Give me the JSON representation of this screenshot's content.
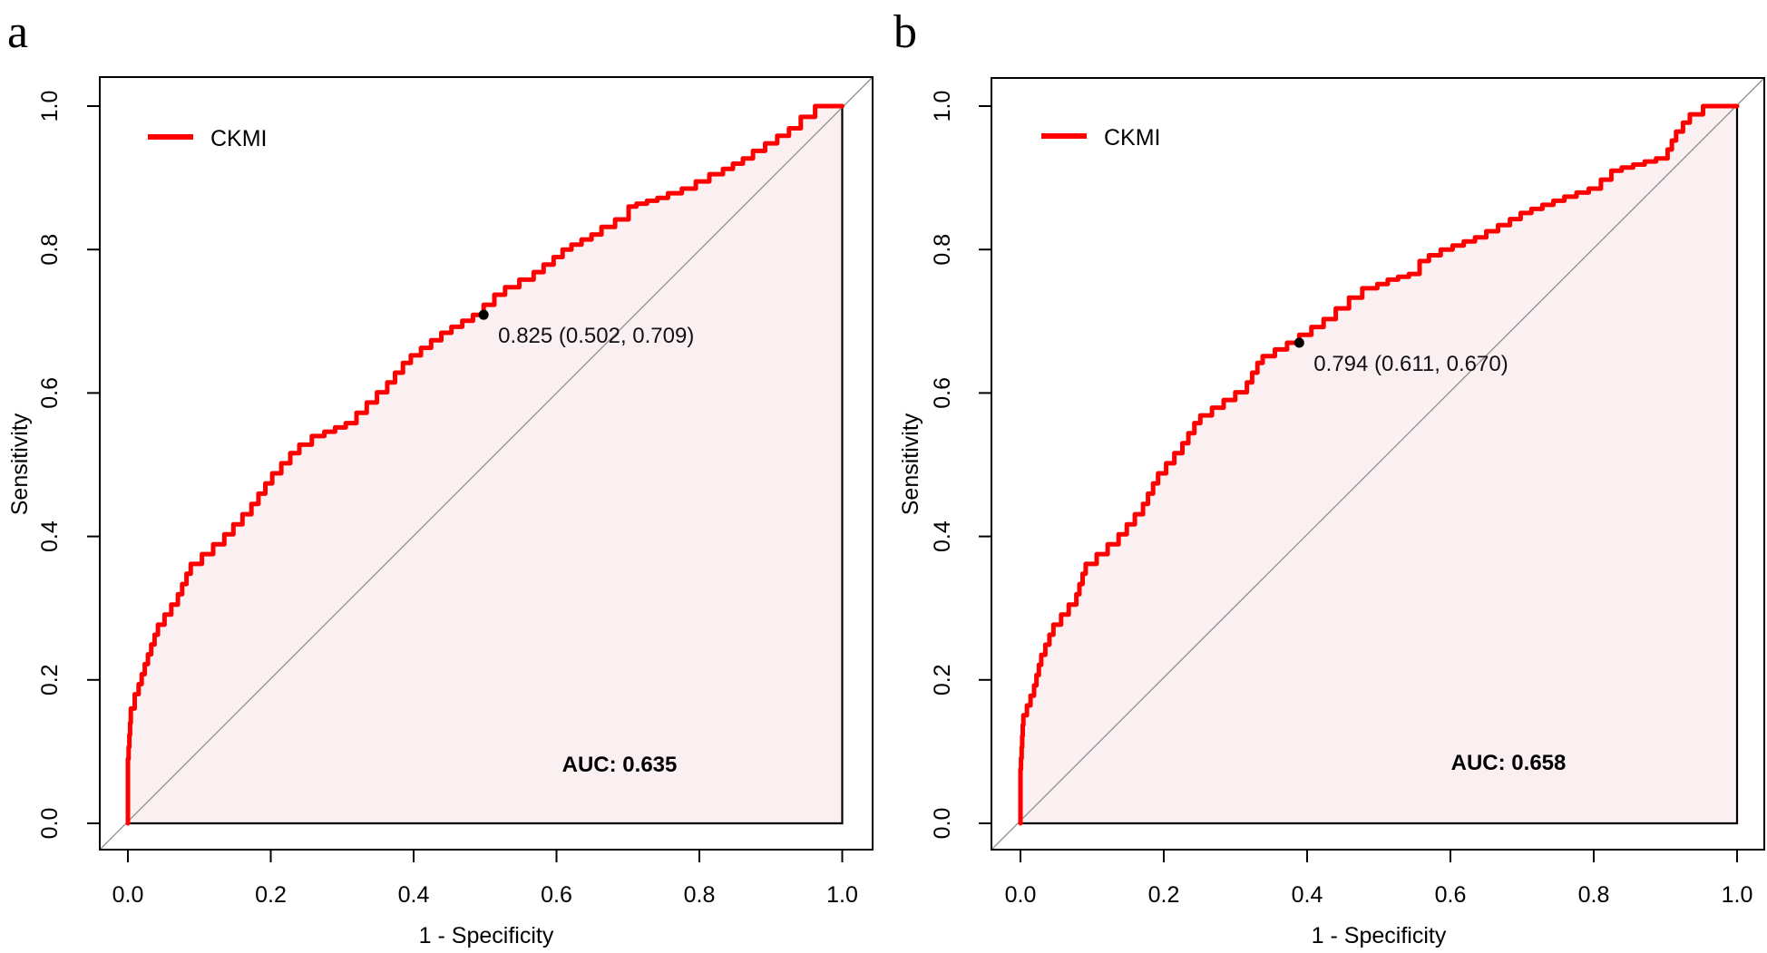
{
  "figure": {
    "background": "#ffffff",
    "panel_letters": [
      "a",
      "b"
    ]
  },
  "chart_data": [
    {
      "type": "line",
      "panel_label": "a",
      "title": "",
      "xlabel": "1 - Specificity",
      "ylabel": "Sensitivity",
      "xlim": [
        0.0,
        1.0
      ],
      "ylim": [
        0.0,
        1.0
      ],
      "x_tick_labels": [
        "0.0",
        "0.2",
        "0.4",
        "0.6",
        "0.8",
        "1.0"
      ],
      "y_tick_labels": [
        "0.0",
        "0.2",
        "0.4",
        "0.6",
        "0.8",
        "1.0"
      ],
      "grid": false,
      "legend_position": "top-left",
      "legend": [
        {
          "label": "CKMI",
          "color": "#ff0000"
        }
      ],
      "diagonal_reference": true,
      "auc": 0.635,
      "auc_label": "AUC: 0.635",
      "auc_color": "#ef3b46",
      "area_fill": "#fbf0f1",
      "best_threshold": {
        "label": "0.825 (0.502, 0.709)",
        "threshold": 0.825,
        "specificity": 0.502,
        "sensitivity": 0.709
      },
      "series": [
        {
          "name": "CKMI",
          "color": "#ff0000",
          "step": true,
          "points": [
            [
              0,
              0
            ],
            [
              0,
              0.073
            ],
            [
              0.004,
              0.14
            ],
            [
              0.015,
              0.18
            ],
            [
              0.028,
              0.222
            ],
            [
              0.042,
              0.263
            ],
            [
              0.07,
              0.305
            ],
            [
              0.088,
              0.348
            ],
            [
              0.135,
              0.389
            ],
            [
              0.173,
              0.431
            ],
            [
              0.202,
              0.474
            ],
            [
              0.24,
              0.516
            ],
            [
              0.275,
              0.54
            ],
            [
              0.32,
              0.558
            ],
            [
              0.363,
              0.601
            ],
            [
              0.396,
              0.642
            ],
            [
              0.453,
              0.684
            ],
            [
              0.498,
              0.709
            ],
            [
              0.528,
              0.737
            ],
            [
              0.568,
              0.758
            ],
            [
              0.596,
              0.779
            ],
            [
              0.621,
              0.8
            ],
            [
              0.663,
              0.821
            ],
            [
              0.701,
              0.842
            ],
            [
              0.712,
              0.86
            ],
            [
              0.756,
              0.872
            ],
            [
              0.795,
              0.885
            ],
            [
              0.833,
              0.905
            ],
            [
              0.875,
              0.927
            ],
            [
              0.909,
              0.948
            ],
            [
              0.942,
              0.969
            ],
            [
              0.962,
              0.985
            ],
            [
              0.985,
              1
            ],
            [
              1,
              1
            ]
          ]
        }
      ]
    },
    {
      "type": "line",
      "panel_label": "b",
      "title": "",
      "xlabel": "1 - Specificity",
      "ylabel": "Sensitivity",
      "xlim": [
        0.0,
        1.0
      ],
      "ylim": [
        0.0,
        1.0
      ],
      "x_tick_labels": [
        "0.0",
        "0.2",
        "0.4",
        "0.6",
        "0.8",
        "1.0"
      ],
      "y_tick_labels": [
        "0.0",
        "0.2",
        "0.4",
        "0.6",
        "0.8",
        "1.0"
      ],
      "grid": false,
      "legend_position": "top-left",
      "legend": [
        {
          "label": "CKMI",
          "color": "#ff0000"
        }
      ],
      "diagonal_reference": true,
      "auc": 0.658,
      "auc_label": "AUC: 0.658",
      "auc_color": "#ef3b46",
      "area_fill": "#fbf0f1",
      "best_threshold": {
        "label": "0.794 (0.611, 0.670)",
        "threshold": 0.794,
        "specificity": 0.611,
        "sensitivity": 0.67
      },
      "series": [
        {
          "name": "CKMI",
          "color": "#ff0000",
          "step": true,
          "points": [
            [
              0,
              0
            ],
            [
              0,
              0.06
            ],
            [
              0.004,
              0.137
            ],
            [
              0.019,
              0.178
            ],
            [
              0.029,
              0.221
            ],
            [
              0.046,
              0.263
            ],
            [
              0.078,
              0.305
            ],
            [
              0.091,
              0.348
            ],
            [
              0.137,
              0.389
            ],
            [
              0.171,
              0.431
            ],
            [
              0.192,
              0.474
            ],
            [
              0.226,
              0.516
            ],
            [
              0.251,
              0.558
            ],
            [
              0.316,
              0.601
            ],
            [
              0.338,
              0.642
            ],
            [
              0.389,
              0.67
            ],
            [
              0.44,
              0.703
            ],
            [
              0.477,
              0.733
            ],
            [
              0.498,
              0.746
            ],
            [
              0.527,
              0.758
            ],
            [
              0.557,
              0.766
            ],
            [
              0.57,
              0.784
            ],
            [
              0.603,
              0.8
            ],
            [
              0.65,
              0.817
            ],
            [
              0.683,
              0.834
            ],
            [
              0.713,
              0.851
            ],
            [
              0.759,
              0.868
            ],
            [
              0.81,
              0.885
            ],
            [
              0.839,
              0.91
            ],
            [
              0.903,
              0.927
            ],
            [
              0.915,
              0.952
            ],
            [
              0.934,
              0.977
            ],
            [
              0.971,
              1
            ],
            [
              1,
              1
            ]
          ]
        }
      ]
    }
  ],
  "colors": {
    "curve": "#ff0000",
    "area_fill": "#fbf0f1",
    "diagonal": "#8f8f8f",
    "axis": "#000000",
    "threshold_point": "#000000"
  }
}
